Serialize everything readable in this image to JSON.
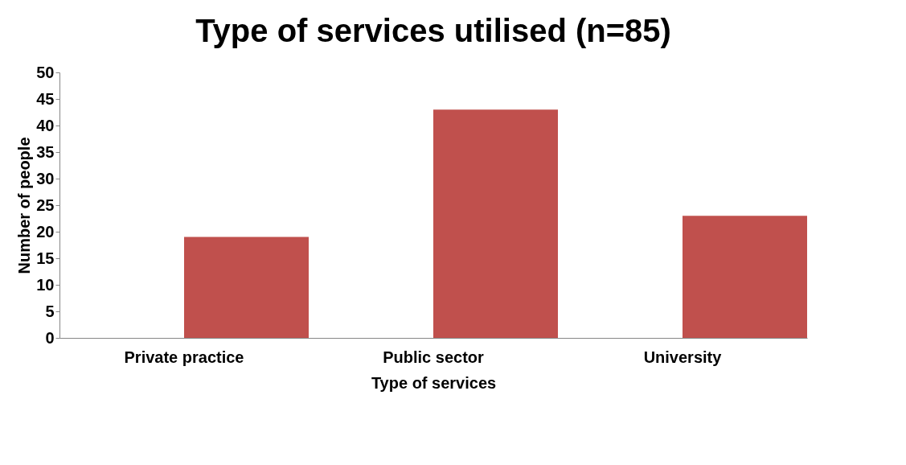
{
  "chart_data": {
    "type": "bar",
    "title": "Type of services utilised  (n=85)",
    "xlabel": "Type of services",
    "ylabel": "Number of people",
    "categories": [
      "Private practice",
      "Public sector",
      "University"
    ],
    "values": [
      19,
      43,
      23
    ],
    "color": "#c0504d",
    "ylim": [
      0,
      50
    ],
    "yticks": [
      0,
      5,
      10,
      15,
      20,
      25,
      30,
      35,
      40,
      45,
      50
    ],
    "grid": false
  }
}
